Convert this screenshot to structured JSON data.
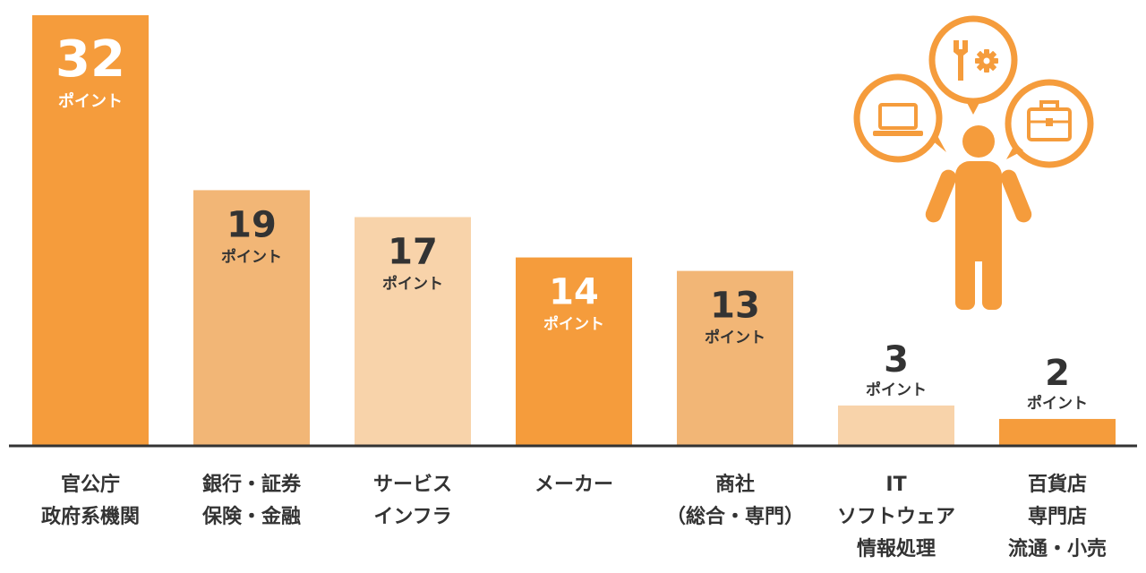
{
  "chart_data": {
    "type": "bar",
    "categories": [
      [
        "官公庁",
        "政府系機関"
      ],
      [
        "銀行・証券",
        "保険・金融"
      ],
      [
        "サービス",
        "インフラ"
      ],
      [
        "メーカー"
      ],
      [
        "商社",
        "（総合・専門）"
      ],
      [
        "IT",
        "ソフトウェア",
        "情報処理"
      ],
      [
        "百貨店",
        "専門店",
        "流通・小売"
      ]
    ],
    "values": [
      32,
      19,
      17,
      14,
      13,
      3,
      2
    ],
    "value_labels": [
      "32",
      "19",
      "17",
      "14",
      "13",
      "3",
      "2"
    ],
    "unit_label": "ポイント",
    "bar_colors": [
      "#f59c3c",
      "#f2b676",
      "#f8d3aa",
      "#f59c3c",
      "#f2b676",
      "#f8d3aa",
      "#f59c3c"
    ],
    "ylim": [
      0,
      32
    ],
    "grid": false,
    "legend": "none"
  },
  "colors": {
    "label_inside": "#ffffff",
    "label_outside": "#333333",
    "axis": "#333333",
    "illustration": "#f59c3c"
  },
  "illustration": {
    "figure": "person-icon",
    "bubbles": [
      "laptop-icon",
      "tools-icon",
      "briefcase-icon"
    ]
  }
}
